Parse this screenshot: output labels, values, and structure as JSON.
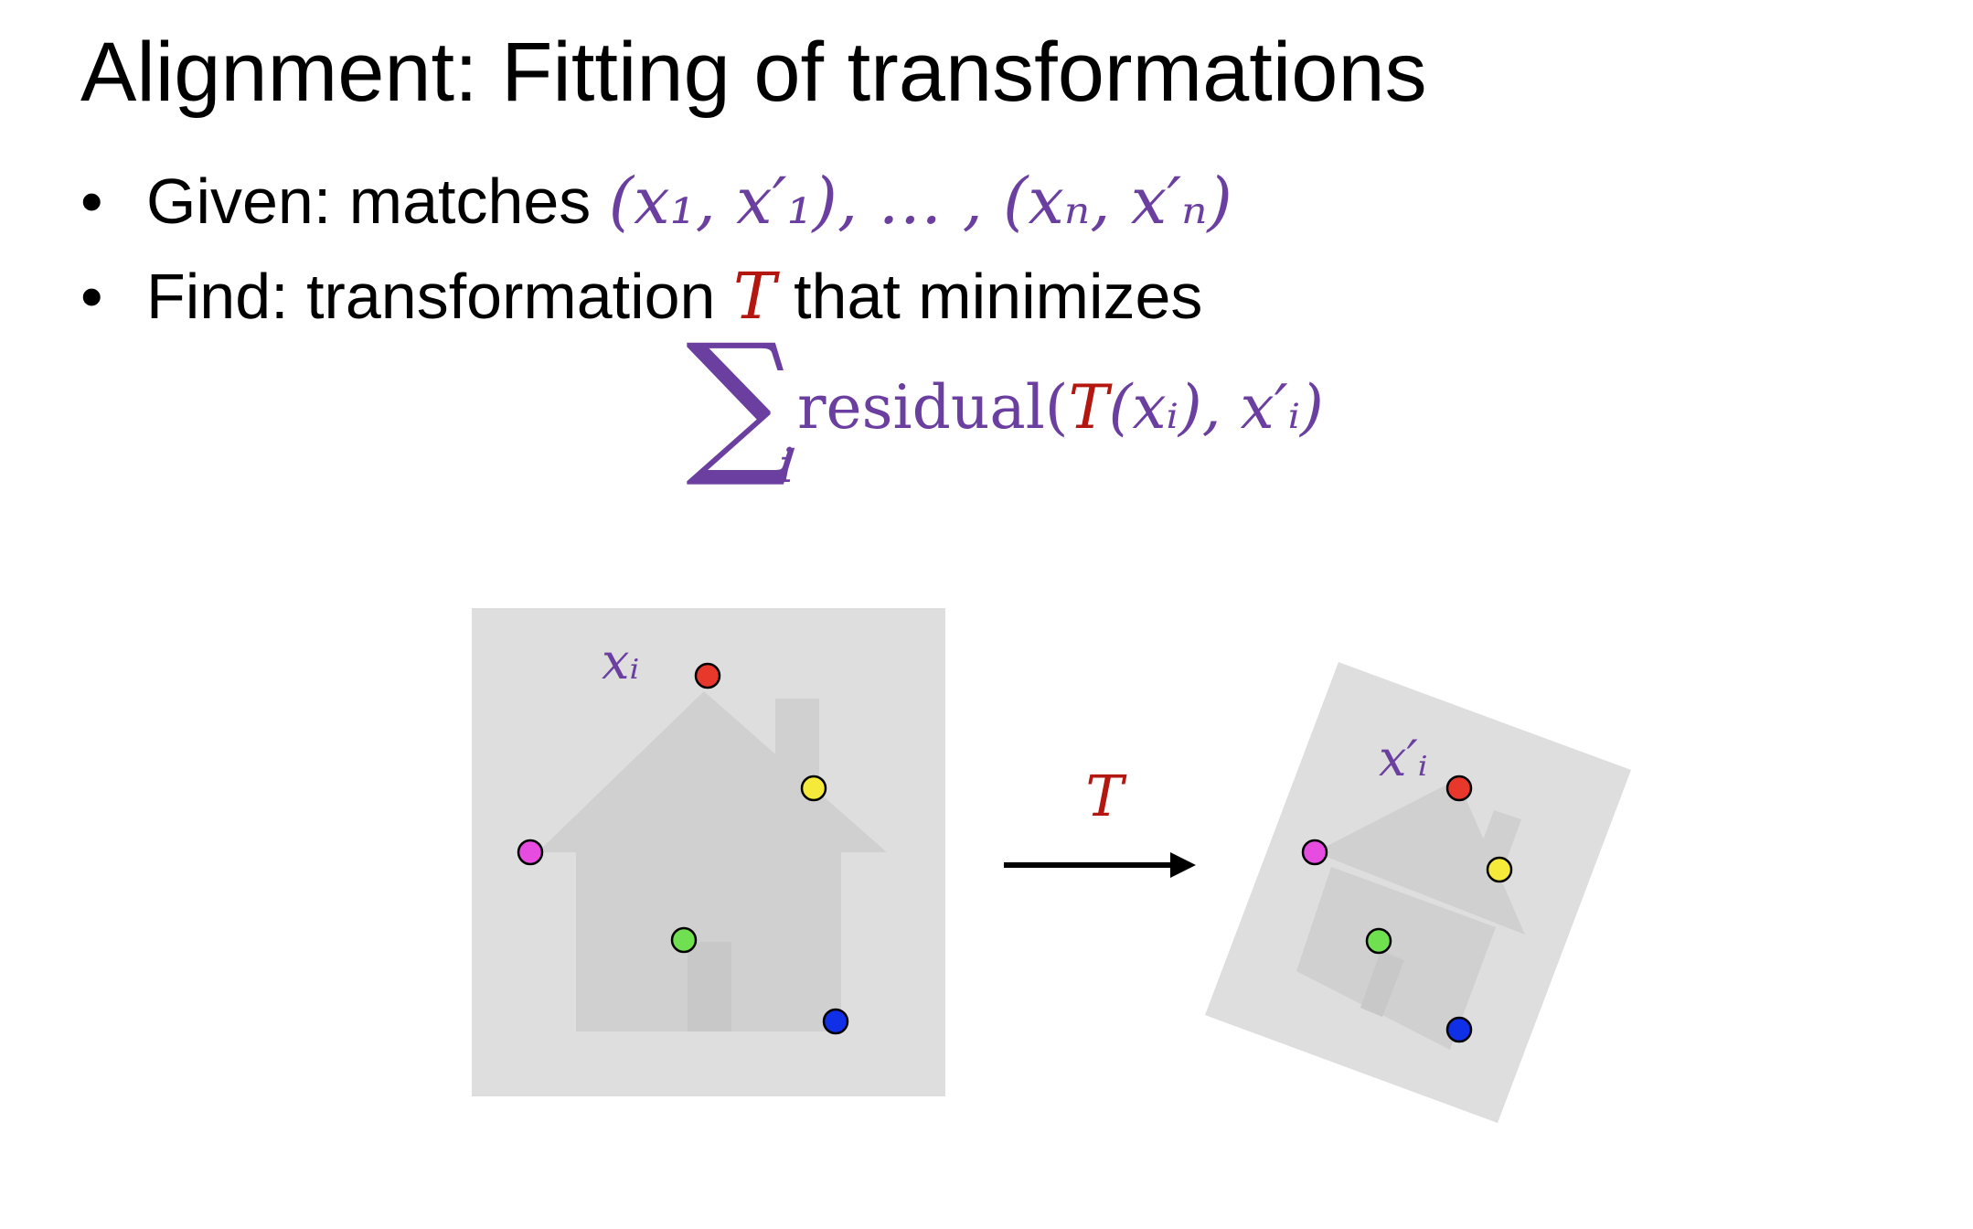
{
  "slide": {
    "title": "Alignment: Fitting of transformations",
    "bullets": [
      {
        "marker": "•",
        "text": "Given: matches ",
        "math": "(x₁, x′₁), … , (xₙ, x′ₙ)"
      },
      {
        "marker": "•",
        "text_before": "Find: transformation ",
        "symbol": "T",
        "text_after": " that minimizes"
      }
    ],
    "formula": {
      "sigma": "∑",
      "sigma_sub": "i",
      "func": "residual(",
      "T": "T",
      "args": "(xᵢ), x′ᵢ)"
    }
  },
  "figure": {
    "source_label": "xᵢ",
    "target_label": "x′ᵢ",
    "arrow_label": "T",
    "colors": {
      "panel": "#dedede",
      "house": "#d0d0d0",
      "math_purple": "#6b3fa0",
      "math_red": "#b3170f",
      "points": [
        "#e8382c",
        "#f5ea3a",
        "#e64ce0",
        "#6fe04f",
        "#1030e8"
      ]
    }
  }
}
